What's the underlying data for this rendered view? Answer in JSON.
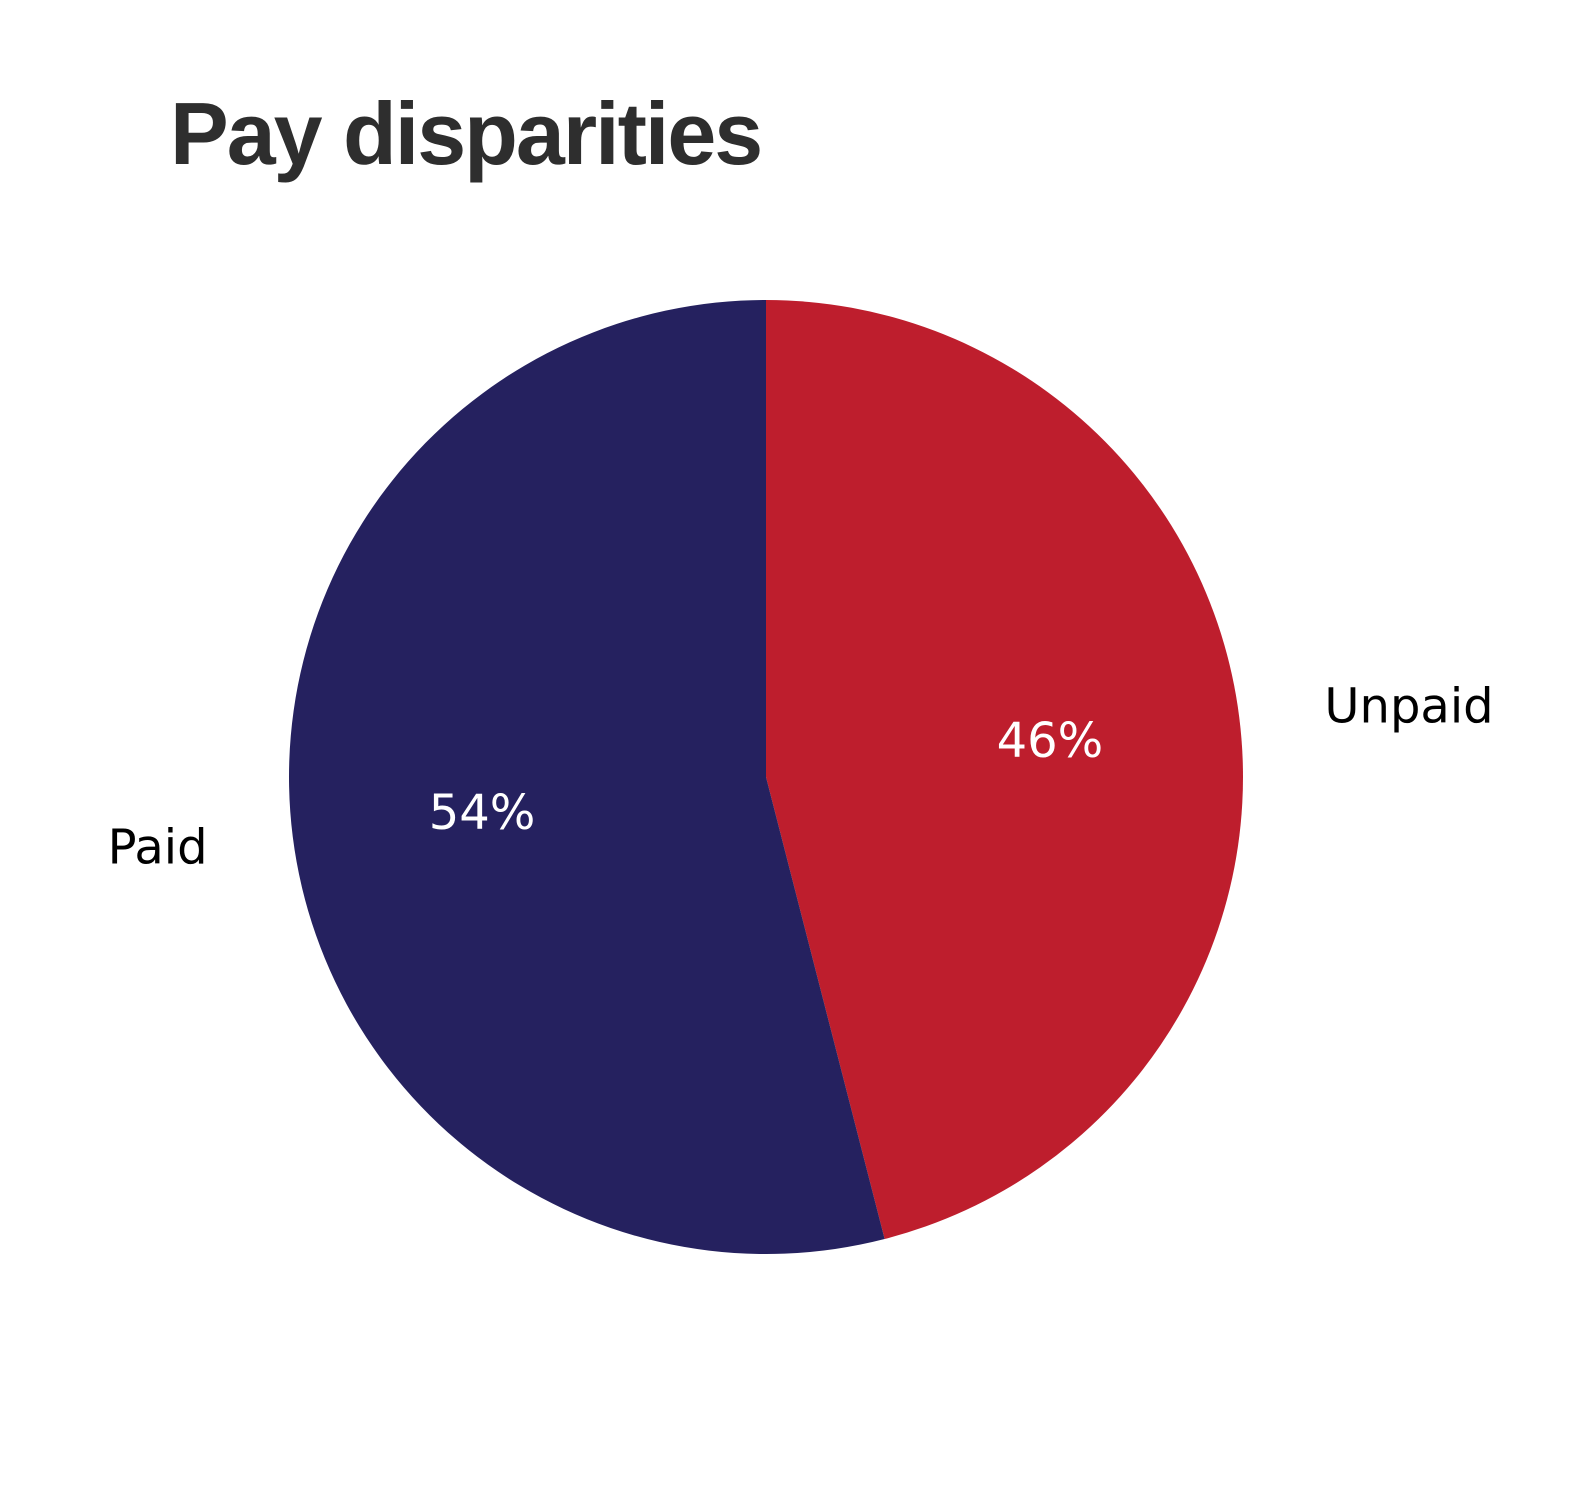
{
  "chart_data": {
    "type": "pie",
    "title": "Pay disparities",
    "start_angle_deg": 0,
    "direction": "clockwise",
    "slices": [
      {
        "label": "Unpaid",
        "value": 46,
        "value_label": "46%",
        "color": "#be1e2d"
      },
      {
        "label": "Paid",
        "value": 54,
        "value_label": "54%",
        "color": "#25215f"
      }
    ]
  }
}
